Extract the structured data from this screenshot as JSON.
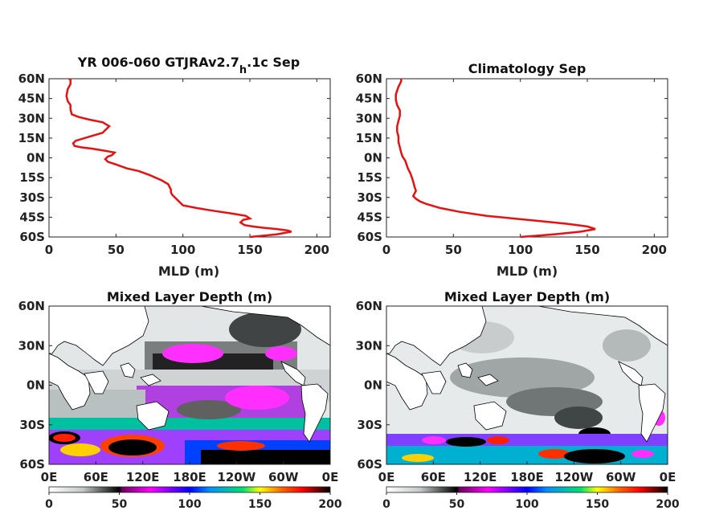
{
  "chart_data": [
    {
      "type": "line",
      "title_main": "YR 006-060 GTJRAv2.7",
      "title_sub": "h",
      "title_tail": ".1c Sep",
      "xlabel": "MLD (m)",
      "ylabel": "",
      "xlim": [
        0,
        210
      ],
      "ylim": [
        -60,
        60
      ],
      "xticks": [
        0,
        50,
        100,
        150,
        200
      ],
      "xtick_labels": [
        "0",
        "50",
        "100",
        "150",
        "200"
      ],
      "yticks": [
        -60,
        -45,
        -30,
        -15,
        0,
        15,
        30,
        45,
        60
      ],
      "ytick_labels": [
        "60S",
        "45S",
        "30S",
        "15S",
        "0N",
        "15N",
        "30N",
        "45N",
        "60N"
      ],
      "color": "#e81010",
      "series": [
        {
          "x": [
            150,
            160,
            170,
            181,
            178,
            170,
            160,
            152,
            146,
            143,
            145,
            150,
            147,
            135,
            122,
            110,
            100,
            97,
            95,
            92,
            91,
            91,
            90,
            89,
            84,
            75,
            67,
            58,
            50,
            44,
            42,
            44,
            47,
            49,
            44,
            38,
            32,
            24,
            19,
            18,
            20,
            30,
            40,
            45,
            40,
            30,
            22,
            17,
            16,
            16,
            14,
            13,
            14,
            16,
            16,
            15
          ],
          "y": [
            -60,
            -59,
            -58,
            -56,
            -55,
            -54,
            -53,
            -52,
            -51,
            -49,
            -47,
            -46,
            -44,
            -42,
            -40,
            -38,
            -36,
            -33,
            -31,
            -28,
            -26,
            -24,
            -22,
            -20,
            -17,
            -13,
            -10,
            -8,
            -5,
            -3,
            -1,
            1,
            2,
            4,
            5,
            6,
            7,
            8,
            9,
            11,
            13,
            16,
            19,
            24,
            27,
            29,
            31,
            33,
            37,
            40,
            43,
            47,
            52,
            56,
            59,
            60
          ]
        }
      ]
    },
    {
      "type": "line",
      "title": "Climatology Sep",
      "xlabel": "MLD (m)",
      "ylabel": "",
      "xlim": [
        0,
        210
      ],
      "ylim": [
        -60,
        60
      ],
      "xticks": [
        0,
        50,
        100,
        150,
        200
      ],
      "xtick_labels": [
        "0",
        "50",
        "100",
        "150",
        "200"
      ],
      "yticks": [
        -60,
        -45,
        -30,
        -15,
        0,
        15,
        30,
        45,
        60
      ],
      "ytick_labels": [
        "60S",
        "45S",
        "30S",
        "15S",
        "0N",
        "15N",
        "30N",
        "45N",
        "60N"
      ],
      "color": "#e81010",
      "series": [
        {
          "x": [
            100,
            125,
            145,
            156,
            150,
            135,
            115,
            95,
            75,
            55,
            40,
            30,
            25,
            22,
            20,
            21,
            22,
            21,
            20,
            19,
            18,
            16,
            15,
            14,
            12,
            11,
            10,
            9,
            9,
            8,
            8,
            9,
            10,
            10,
            8,
            7,
            7,
            8,
            9,
            10,
            11,
            11
          ],
          "y": [
            -60,
            -58,
            -56,
            -54,
            -52,
            -50,
            -48,
            -46,
            -44,
            -41,
            -38,
            -35,
            -33,
            -31,
            -29,
            -27,
            -25,
            -22,
            -18,
            -15,
            -12,
            -8,
            -5,
            -2,
            1,
            4,
            8,
            12,
            16,
            20,
            24,
            28,
            32,
            36,
            40,
            44,
            48,
            51,
            54,
            56,
            58,
            60
          ]
        }
      ]
    },
    {
      "type": "heatmap",
      "title": "Mixed Layer Depth (m)",
      "xtick_labels": [
        "0E",
        "60E",
        "120E",
        "180E",
        "120W",
        "60W",
        "0E"
      ],
      "ytick_labels": [
        "60S",
        "30S",
        "0N",
        "30N",
        "60N"
      ],
      "colorbar_ticks": [
        "0",
        "50",
        "100",
        "150",
        "200"
      ],
      "clim": [
        0,
        200
      ]
    },
    {
      "type": "heatmap",
      "title": "Mixed Layer Depth (m)",
      "xtick_labels": [
        "0E",
        "60E",
        "120E",
        "180E",
        "120W",
        "60W",
        "0E"
      ],
      "ytick_labels": [
        "60S",
        "30S",
        "0N",
        "30N",
        "60N"
      ],
      "colorbar_ticks": [
        "0",
        "50",
        "100",
        "150",
        "200"
      ],
      "clim": [
        0,
        200
      ]
    }
  ]
}
